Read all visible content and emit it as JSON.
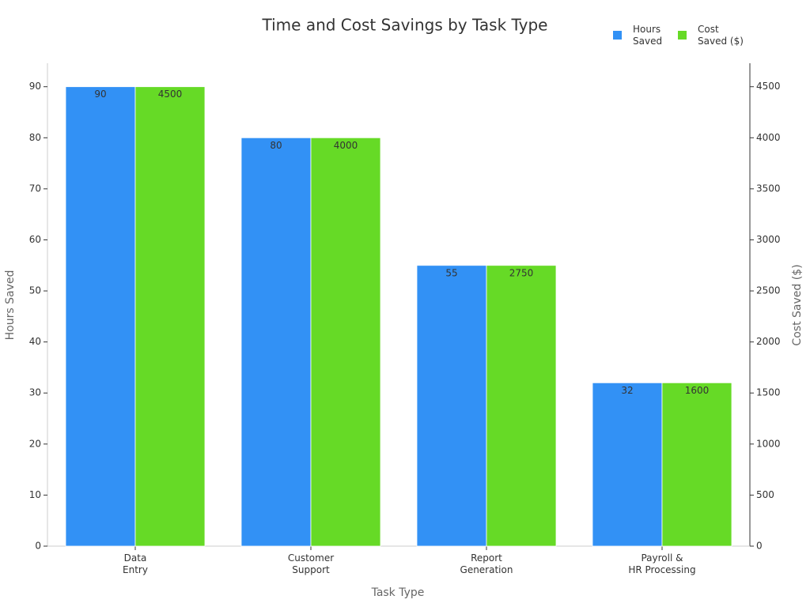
{
  "chart_data": {
    "type": "bar",
    "title": "Time and Cost Savings by Task Type",
    "categories": [
      "Data\nEntry",
      "Customer\nSupport",
      "Report\nGeneration",
      "Payroll &\nHR Processing"
    ],
    "series": [
      {
        "name": "Hours\nSaved",
        "color": "#3291f5",
        "values": [
          90,
          80,
          55,
          32
        ]
      },
      {
        "name": "Cost\nSaved ($)",
        "color": "#66da26",
        "values": [
          4500,
          4000,
          2750,
          1600
        ],
        "axis": "y2"
      }
    ],
    "x_label": "Task Type",
    "y_label": "Hours Saved",
    "y2_label": "Cost Saved ($)",
    "ylim": [
      0,
      94.6
    ],
    "yticks": [
      0,
      10,
      20,
      30,
      40,
      50,
      60,
      70,
      80,
      90
    ],
    "y2lim": [
      0,
      4730
    ],
    "y2ticks": [
      0,
      500,
      1000,
      1500,
      2000,
      2500,
      3000,
      3500,
      4000,
      4500
    ],
    "legend": "top-right"
  }
}
